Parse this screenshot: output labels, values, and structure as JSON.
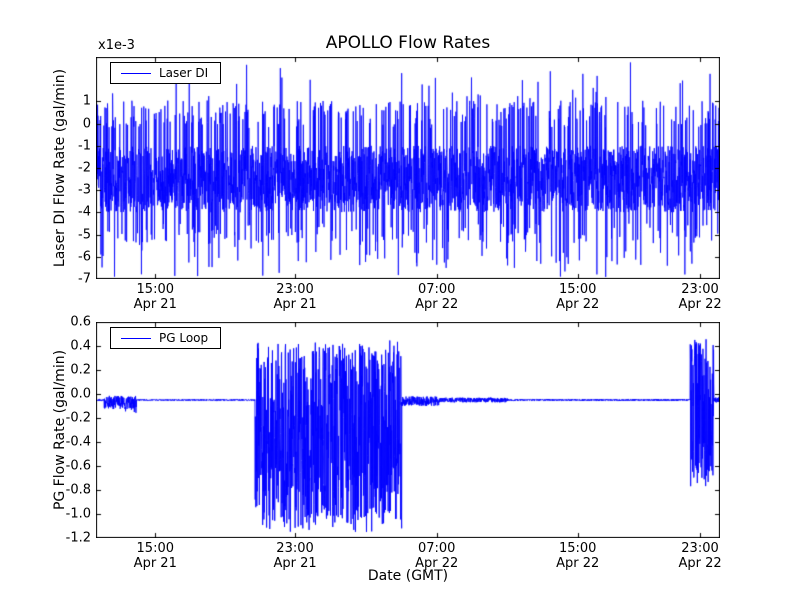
{
  "figure": {
    "title": "APOLLO Flow Rates",
    "xlabel": "Date (GMT)",
    "line_color": "#0000ff",
    "background": "#ffffff",
    "frame_color": "#000000"
  },
  "chart_data": [
    {
      "type": "line",
      "name": "laser-di-flow",
      "ylabel": "Laser DI Flow Rate (gal/min)",
      "offset_label": "x1e-3",
      "legend": {
        "label": "Laser DI",
        "position": "upper left"
      },
      "grid": false,
      "ylim": [
        -7,
        3
      ],
      "yticks": {
        "values": [
          1,
          0,
          -1,
          -2,
          -3,
          -4,
          -5,
          -6,
          -7
        ],
        "labels": [
          "1",
          "0",
          "-1",
          "-2",
          "-3",
          "-4",
          "-5",
          "-6",
          "-7"
        ]
      },
      "xticks": [
        {
          "frac": 0.095,
          "time": "15:00",
          "date": "Apr 21"
        },
        {
          "frac": 0.319,
          "time": "23:00",
          "date": "Apr 21"
        },
        {
          "frac": 0.546,
          "time": "07:00",
          "date": "Apr 22"
        },
        {
          "frac": 0.772,
          "time": "15:00",
          "date": "Apr 22"
        },
        {
          "frac": 0.968,
          "time": "23:00",
          "date": "Apr 22"
        }
      ],
      "signal_summary": {
        "units": "gal/min x1e-3",
        "baseline": -2.5,
        "dense_band": [
          -4,
          -1
        ],
        "frequent_up_spikes_to": [
          0,
          1
        ],
        "rare_up_spikes_to": 2.8,
        "frequent_down_spikes_to": [
          -5,
          -6
        ],
        "rare_down_spikes_to": -7,
        "character": "continuous dense noise across entire time span"
      },
      "signal_model": {
        "seed": 11,
        "samples": 3200,
        "line_width": 0.8,
        "segments": [
          {
            "from": 0.0,
            "to": 1.001,
            "base": -2.5,
            "jitter": 1.5,
            "spikes": [
              {
                "prob": 0.1,
                "lo": -0.2,
                "hi": 1.05
              },
              {
                "prob": 0.01,
                "lo": 1.1,
                "hi": 2.85
              },
              {
                "prob": 0.06,
                "lo": -4.5,
                "hi": -5.4
              },
              {
                "prob": 0.02,
                "lo": -5.4,
                "hi": -6.4
              },
              {
                "prob": 0.006,
                "lo": -6.4,
                "hi": -7.0
              }
            ]
          }
        ]
      }
    },
    {
      "type": "line",
      "name": "pg-loop-flow",
      "ylabel": "PG Flow Rate (gal/min)",
      "offset_label": "",
      "legend": {
        "label": "PG Loop",
        "position": "upper left"
      },
      "grid": false,
      "ylim": [
        -1.2,
        0.6
      ],
      "yticks": {
        "values": [
          0.6,
          0.4,
          0.2,
          0.0,
          -0.2,
          -0.4,
          -0.6,
          -0.8,
          -1.0,
          -1.2
        ],
        "labels": [
          "0.6",
          "0.4",
          "0.2",
          "0.0",
          "-0.2",
          "-0.4",
          "-0.6",
          "-0.8",
          "-1.0",
          "-1.2"
        ]
      },
      "xticks": [
        {
          "frac": 0.095,
          "time": "15:00",
          "date": "Apr 21"
        },
        {
          "frac": 0.319,
          "time": "23:00",
          "date": "Apr 21"
        },
        {
          "frac": 0.546,
          "time": "07:00",
          "date": "Apr 22"
        },
        {
          "frac": 0.772,
          "time": "15:00",
          "date": "Apr 22"
        },
        {
          "frac": 0.968,
          "time": "23:00",
          "date": "Apr 22"
        }
      ],
      "signal_summary": {
        "units": "gal/min",
        "baseline": -0.05,
        "quiet_noise_amplitude": 0.01,
        "small_burst_early": {
          "approx_time": "13:00-14:30 Apr 21",
          "range": [
            -0.16,
            0.0
          ]
        },
        "main_burst": {
          "approx_time": "21:30 Apr 21 - 05:30 Apr 22",
          "range": [
            -1.15,
            0.47
          ]
        },
        "end_burst": {
          "approx_time": "22:30-23:30 Apr 22",
          "range": [
            -0.77,
            0.46
          ]
        },
        "character": "flat baseline with three noise bursts"
      },
      "signal_model": {
        "seed": 29,
        "samples": 3000,
        "line_width": 0.9,
        "segments": [
          {
            "from": 0.0,
            "to": 0.013,
            "base": -0.05,
            "jitter": 0.008
          },
          {
            "from": 0.013,
            "to": 0.065,
            "base": -0.07,
            "jitter": 0.055,
            "spikes": [
              {
                "prob": 0.06,
                "lo": -0.16,
                "hi": -0.1
              }
            ]
          },
          {
            "from": 0.065,
            "to": 0.255,
            "base": -0.05,
            "jitter": 0.006
          },
          {
            "from": 0.255,
            "to": 0.49,
            "base": -0.33,
            "jitter": 0.73,
            "spikes": [
              {
                "prob": 0.07,
                "lo": -1.15,
                "hi": -0.95
              },
              {
                "prob": 0.05,
                "lo": 0.3,
                "hi": 0.47
              }
            ]
          },
          {
            "from": 0.49,
            "to": 0.55,
            "base": -0.06,
            "jitter": 0.04
          },
          {
            "from": 0.55,
            "to": 0.66,
            "base": -0.05,
            "jitter": 0.02
          },
          {
            "from": 0.66,
            "to": 0.952,
            "base": -0.05,
            "jitter": 0.007
          },
          {
            "from": 0.952,
            "to": 0.99,
            "base": -0.17,
            "jitter": 0.6,
            "spikes": [
              {
                "prob": 0.05,
                "lo": 0.3,
                "hi": 0.46
              }
            ]
          },
          {
            "from": 0.99,
            "to": 1.001,
            "base": -0.05,
            "jitter": 0.025
          }
        ]
      }
    }
  ]
}
